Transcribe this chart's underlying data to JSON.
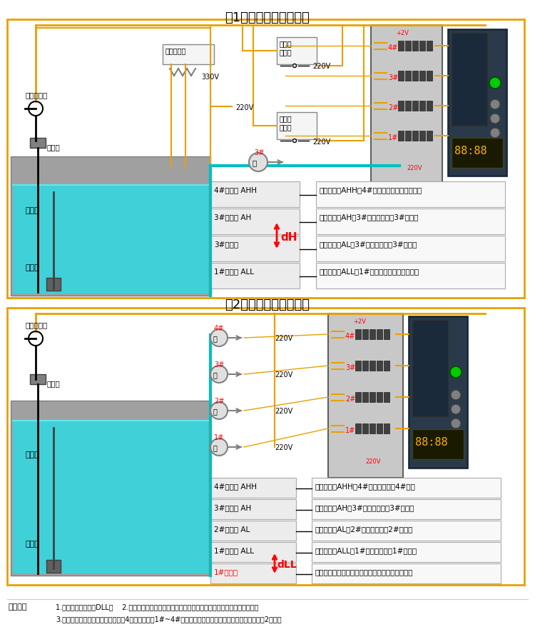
{
  "title1": "（1）单泵自动抽水系统",
  "title2": "（2）四泵自动抽水系统",
  "bg_color": "#ffffff",
  "border_color": "#E8A000",
  "water_color": "#40D0D8",
  "tank_bg": "#B0B0B0",
  "cable_color": "#000000",
  "cyan_line": "#00BFBF",
  "yellow_line": "#E8A000",
  "note_title": "【说明】",
  "note_lines": [
    "1.通常液位被控制在DLL内    2.每个继电器均可任意设定吸合点及断开点（回差）以避免泵的频繁启动",
    "3.每个继电器均可分别指定（此图为4泵排水系统，1#~4#均指定为上限）。给水系统通常指定两个上限2个下限"
  ],
  "section1_labels_left": [
    "4#吸合点 AHH",
    "3#吸合点 AH",
    "3#断开点",
    "1#吸合点 ALL"
  ],
  "section1_labels_right": [
    "液位上升到AHH，4#继电器吸合，上上限报警",
    "液位上升到AH，3#继电器吸合，3#泵启动",
    "液位下降到AL，3#继电器断开，3#泵停止",
    "液位下降到ALL，1#继电器吸合，下下限报警"
  ],
  "section2_labels_left": [
    "4#吸合点 AHH",
    "3#吸合点 AH",
    "2#吸合点 AL",
    "1#吸合点 ALL",
    "1#断开点"
  ],
  "section2_labels_right": [
    "液位上升到AHH，4#继电器吸合，4#启动",
    "液位上升到AH，3#继电器吸合，3#泵启动",
    "液位上升到AL，2#继电器吸合，2#泵启动",
    "液位上升到ALL，1#继电器吸合，1#泵启动",
    "液位下降到此点时，所有继电器断开，所有泵停止"
  ],
  "dH_label": "dH",
  "dLL_label": "dLL",
  "pump_labels_s1": [
    "3#"
  ],
  "pump_labels_s2": [
    "4#",
    "3#",
    "2#",
    "1#"
  ],
  "voltage_s2": [
    "220V",
    "220V",
    "220V",
    "220V"
  ],
  "relay_labels": [
    "4#",
    "3#",
    "2#",
    "1#"
  ],
  "text_puxian": "普通屏蔽线",
  "text_jxh": "接线盒",
  "text_fsq": "变送器",
  "text_fsx": "防水线"
}
